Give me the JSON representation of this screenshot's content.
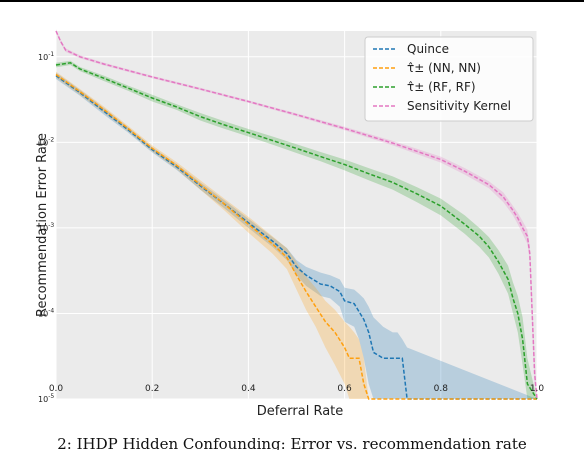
{
  "caption": "2: IHDP Hidden Confounding: Error vs. recommendation rate",
  "chart_data": {
    "type": "line",
    "xlabel": "Deferral Rate",
    "ylabel": "Recommendation Error Rate",
    "xlim": [
      0.0,
      1.0
    ],
    "ylim": [
      1e-05,
      0.2
    ],
    "yscale": "log",
    "grid": true,
    "legend_position": "top-right",
    "x_ticks": [
      "0.0",
      "0.2",
      "0.4",
      "0.6",
      "0.8",
      "1.0"
    ],
    "y_ticks": [
      "10^-5",
      "10^-4",
      "10^-3",
      "10^-2",
      "10^-1"
    ],
    "series": [
      {
        "name": "Quince",
        "color": "#1f77b4",
        "x": [
          0.0,
          0.05,
          0.1,
          0.15,
          0.2,
          0.25,
          0.3,
          0.35,
          0.4,
          0.45,
          0.48,
          0.5,
          0.52,
          0.55,
          0.57,
          0.59,
          0.6,
          0.62,
          0.63,
          0.64,
          0.65,
          0.66,
          0.68,
          0.7,
          0.71,
          0.72,
          0.73,
          1.0
        ],
        "values": [
          0.06,
          0.038,
          0.023,
          0.014,
          0.0082,
          0.0052,
          0.0031,
          0.0019,
          0.00115,
          0.0007,
          0.0005,
          0.00035,
          0.00028,
          0.00022,
          0.00021,
          0.00018,
          0.00014,
          0.00013,
          0.000105,
          8.5e-05,
          6e-05,
          3.5e-05,
          3e-05,
          3e-05,
          3e-05,
          3e-05,
          1e-05,
          1e-05
        ],
        "band_upper": [
          0.065,
          0.041,
          0.025,
          0.015,
          0.0088,
          0.0056,
          0.0034,
          0.0021,
          0.00128,
          0.00078,
          0.00058,
          0.00042,
          0.00035,
          0.0003,
          0.00028,
          0.00025,
          0.0002,
          0.00019,
          0.00017,
          0.00015,
          0.00012,
          9e-05,
          7e-05,
          6e-05,
          6e-05,
          5e-05,
          4e-05,
          1e-05
        ],
        "band_lower": [
          0.055,
          0.035,
          0.021,
          0.013,
          0.0076,
          0.0048,
          0.0028,
          0.0017,
          0.001,
          0.0006,
          0.00042,
          0.00028,
          0.00021,
          0.00016,
          0.00015,
          0.00012,
          8e-05,
          7e-05,
          5e-05,
          3e-05,
          1.5e-05,
          1e-05,
          1e-05,
          1e-05,
          1e-05,
          1e-05,
          1e-05,
          1e-05
        ]
      },
      {
        "name": "τ̂± (NN, NN)",
        "color": "#ff9f0e",
        "x": [
          0.0,
          0.05,
          0.1,
          0.15,
          0.2,
          0.25,
          0.3,
          0.35,
          0.4,
          0.45,
          0.48,
          0.5,
          0.52,
          0.54,
          0.56,
          0.58,
          0.6,
          0.61,
          0.62,
          0.63,
          0.64,
          0.65,
          1.0
        ],
        "values": [
          0.062,
          0.039,
          0.024,
          0.0145,
          0.0085,
          0.0054,
          0.0032,
          0.0019,
          0.0011,
          0.00065,
          0.00045,
          0.00028,
          0.00018,
          0.00012,
          8e-05,
          6e-05,
          4e-05,
          3e-05,
          3e-05,
          3e-05,
          1.5e-05,
          1e-05,
          1e-05
        ],
        "band_upper": [
          0.067,
          0.042,
          0.026,
          0.0156,
          0.0092,
          0.0059,
          0.0036,
          0.0022,
          0.00135,
          0.0008,
          0.00058,
          0.0004,
          0.00027,
          0.0002,
          0.00014,
          0.00011,
          8e-05,
          7e-05,
          6e-05,
          5e-05,
          3e-05,
          1e-05,
          1e-05
        ],
        "band_lower": [
          0.057,
          0.036,
          0.022,
          0.0134,
          0.0078,
          0.0049,
          0.0028,
          0.0016,
          0.00088,
          0.0005,
          0.00033,
          0.00019,
          0.00011,
          7e-05,
          4e-05,
          2.5e-05,
          1.5e-05,
          1e-05,
          1e-05,
          1e-05,
          1e-05,
          1e-05,
          1e-05
        ]
      },
      {
        "name": "τ̂± (RF, RF)",
        "color": "#2ca02c",
        "x": [
          0.0,
          0.03,
          0.05,
          0.1,
          0.15,
          0.2,
          0.25,
          0.3,
          0.35,
          0.4,
          0.45,
          0.5,
          0.55,
          0.6,
          0.65,
          0.7,
          0.75,
          0.8,
          0.85,
          0.88,
          0.9,
          0.92,
          0.94,
          0.95,
          0.96,
          0.97,
          0.98,
          1.0
        ],
        "values": [
          0.08,
          0.085,
          0.072,
          0.056,
          0.043,
          0.033,
          0.026,
          0.02,
          0.016,
          0.013,
          0.0105,
          0.0085,
          0.0068,
          0.0055,
          0.0043,
          0.0034,
          0.0025,
          0.0018,
          0.0011,
          0.0008,
          0.0006,
          0.0004,
          0.00025,
          0.00015,
          0.0001,
          5e-05,
          1.5e-05,
          1e-05
        ],
        "band_upper": [
          0.085,
          0.09,
          0.076,
          0.06,
          0.046,
          0.036,
          0.028,
          0.022,
          0.0176,
          0.0143,
          0.0117,
          0.0095,
          0.0077,
          0.0063,
          0.005,
          0.004,
          0.003,
          0.0022,
          0.0014,
          0.001,
          0.00078,
          0.00055,
          0.00036,
          0.00023,
          0.00016,
          9e-05,
          3e-05,
          1e-05
        ],
        "band_lower": [
          0.075,
          0.08,
          0.068,
          0.052,
          0.04,
          0.03,
          0.024,
          0.018,
          0.0144,
          0.0117,
          0.0094,
          0.0075,
          0.006,
          0.0047,
          0.0036,
          0.0028,
          0.002,
          0.0014,
          0.00085,
          0.0006,
          0.00045,
          0.00029,
          0.00017,
          0.0001,
          6e-05,
          2.5e-05,
          1e-05,
          1e-05
        ]
      },
      {
        "name": "Sensitivity Kernel",
        "color": "#e377c2",
        "x": [
          0.0,
          0.01,
          0.02,
          0.05,
          0.1,
          0.2,
          0.3,
          0.4,
          0.5,
          0.6,
          0.7,
          0.8,
          0.85,
          0.9,
          0.93,
          0.95,
          0.96,
          0.97,
          0.98,
          0.985,
          0.99,
          0.995,
          1.0
        ],
        "values": [
          0.2,
          0.15,
          0.12,
          0.1,
          0.082,
          0.058,
          0.042,
          0.03,
          0.021,
          0.0145,
          0.0098,
          0.0063,
          0.0046,
          0.0032,
          0.0023,
          0.0016,
          0.0013,
          0.001,
          0.0008,
          0.0005,
          0.0001,
          2e-05,
          1e-05
        ],
        "band_upper": [
          0.21,
          0.157,
          0.126,
          0.104,
          0.085,
          0.06,
          0.0435,
          0.031,
          0.0218,
          0.0152,
          0.0104,
          0.0068,
          0.005,
          0.0035,
          0.0026,
          0.0018,
          0.0015,
          0.0012,
          0.00095,
          0.0006,
          0.00015,
          3e-05,
          1e-05
        ],
        "band_lower": [
          0.19,
          0.143,
          0.114,
          0.096,
          0.079,
          0.056,
          0.0405,
          0.029,
          0.0202,
          0.0138,
          0.0092,
          0.0058,
          0.0042,
          0.0029,
          0.002,
          0.0014,
          0.0011,
          0.00085,
          0.00065,
          0.0004,
          7e-05,
          1.5e-05,
          1e-05
        ]
      }
    ]
  }
}
